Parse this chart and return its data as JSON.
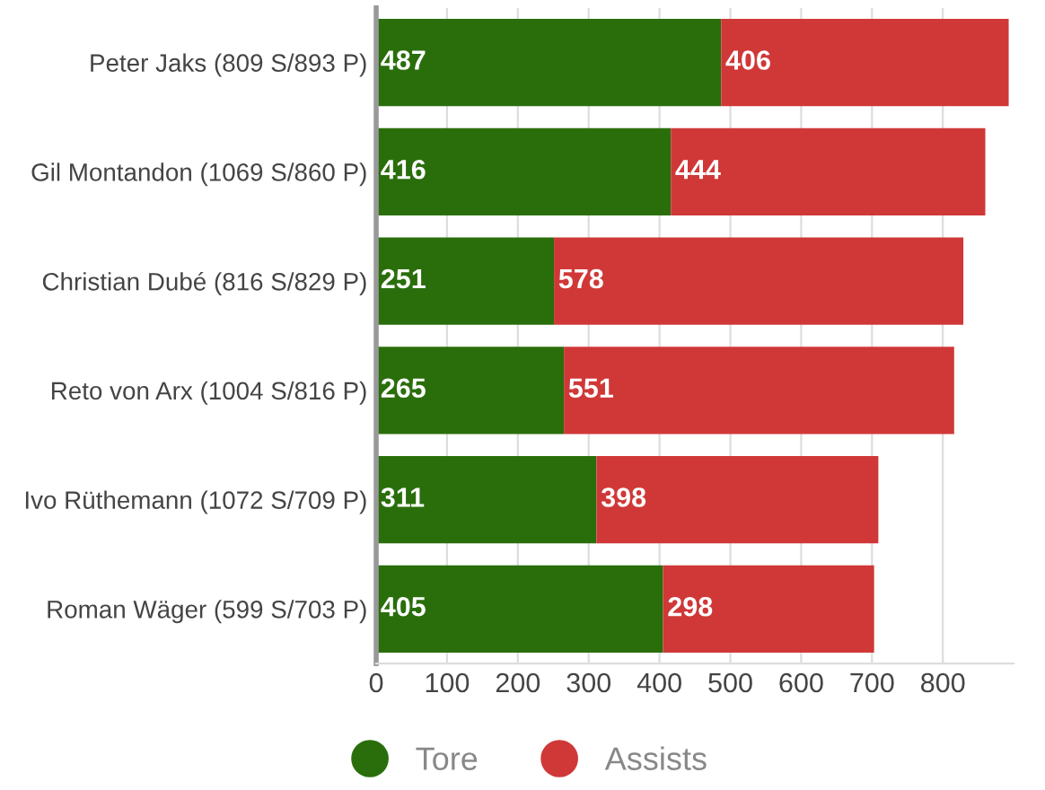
{
  "chart_data": {
    "type": "bar",
    "orientation": "horizontal",
    "stacked": true,
    "categories": [
      "Peter Jaks (809 S/893 P)",
      "Gil Montandon (1069 S/860 P)",
      "Christian Dubé (816 S/829 P)",
      "Reto von Arx (1004 S/816 P)",
      "Ivo Rüthemann (1072 S/709 P)",
      "Roman Wäger (599 S/703 P)"
    ],
    "series": [
      {
        "name": "Tore",
        "color": "#2a6e0c",
        "values": [
          487,
          416,
          251,
          265,
          311,
          405
        ]
      },
      {
        "name": "Assists",
        "color": "#d03838",
        "values": [
          406,
          444,
          578,
          551,
          398,
          298
        ]
      }
    ],
    "xlim": [
      0,
      900
    ],
    "xticks": [
      0,
      100,
      200,
      300,
      400,
      500,
      600,
      700,
      800
    ],
    "grid": "x",
    "legend": "bottom",
    "data_labels": true
  }
}
